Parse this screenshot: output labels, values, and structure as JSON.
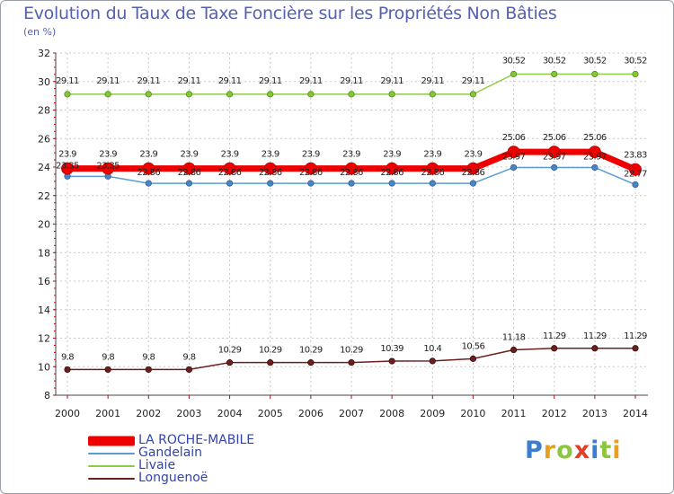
{
  "chart_data": {
    "type": "line",
    "title": "Evolution du Taux de Taxe Foncière sur les Propriétés Non Bâties",
    "ylabel": "(en %)",
    "xlabel": "",
    "ylim": [
      8,
      32
    ],
    "yticks": [
      8,
      10,
      12,
      14,
      16,
      18,
      20,
      22,
      24,
      26,
      28,
      30,
      32
    ],
    "categories": [
      "2000",
      "2001",
      "2002",
      "2003",
      "2004",
      "2005",
      "2006",
      "2007",
      "2008",
      "2009",
      "2010",
      "2011",
      "2012",
      "2013",
      "2014"
    ],
    "series": [
      {
        "name": "LA ROCHE-MABILE",
        "color": "#ee0000",
        "values": [
          23.9,
          23.9,
          23.9,
          23.9,
          23.9,
          23.9,
          23.9,
          23.9,
          23.9,
          23.9,
          23.9,
          25.06,
          25.06,
          25.06,
          23.83
        ],
        "labels": [
          "23.9",
          "23.9",
          "23.9",
          "23.9",
          "23.9",
          "23.9",
          "23.9",
          "23.9",
          "23.9",
          "23.9",
          "23.9",
          "25.06",
          "25.06",
          "25.06",
          "23.83"
        ]
      },
      {
        "name": "Gandelain",
        "color": "#5b9bd5",
        "values": [
          23.35,
          23.35,
          22.86,
          22.86,
          22.86,
          22.86,
          22.86,
          22.86,
          22.86,
          22.86,
          22.86,
          23.97,
          23.97,
          23.97,
          22.77
        ],
        "labels": [
          "23.35",
          "23.35",
          "22.86",
          "22.86",
          "22.86",
          "22.86",
          "22.86",
          "22.86",
          "22.86",
          "22.86",
          "22.86",
          "23.97",
          "23.97",
          "23.97",
          "22.77"
        ]
      },
      {
        "name": "Livaie",
        "color": "#8ccc44",
        "values": [
          29.11,
          29.11,
          29.11,
          29.11,
          29.11,
          29.11,
          29.11,
          29.11,
          29.11,
          29.11,
          29.11,
          30.52,
          30.52,
          30.52,
          30.52
        ],
        "labels": [
          "29.11",
          "29.11",
          "29.11",
          "29.11",
          "29.11",
          "29.11",
          "29.11",
          "29.11",
          "29.11",
          "29.11",
          "29.11",
          "30.52",
          "30.52",
          "30.52",
          "30.52"
        ]
      },
      {
        "name": "Longuenoë",
        "color": "#6b1f1f",
        "values": [
          9.8,
          9.8,
          9.8,
          9.8,
          10.29,
          10.29,
          10.29,
          10.29,
          10.39,
          10.4,
          10.56,
          11.18,
          11.29,
          11.29,
          11.29
        ],
        "labels": [
          "9.8",
          "9.8",
          "9.8",
          "9.8",
          "10.29",
          "10.29",
          "10.29",
          "10.29",
          "10.39",
          "10.4",
          "10.56",
          "11.18",
          "11.29",
          "11.29",
          "11.29"
        ]
      }
    ],
    "grid": true,
    "legend_position": "bottom-left"
  },
  "logo": {
    "letters": [
      "P",
      "r",
      "o",
      "x",
      "i",
      "t",
      "i"
    ],
    "colors": [
      "#3a7fcf",
      "#e8a020",
      "#8cc63f",
      "#e0402a",
      "#3a7fcf",
      "#8cc63f",
      "#e8a020"
    ]
  }
}
